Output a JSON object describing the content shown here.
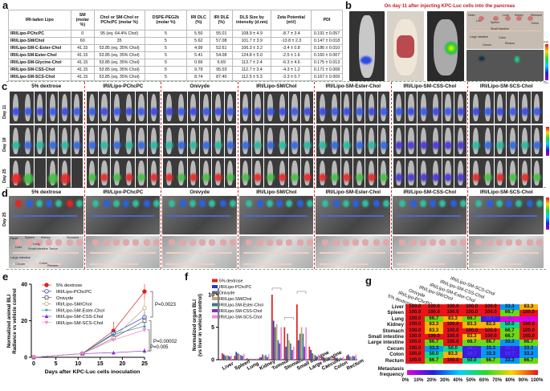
{
  "panel_labels": {
    "a": "a",
    "b": "b",
    "c": "c",
    "d": "d",
    "e": "e",
    "f": "f",
    "g": "g"
  },
  "table": {
    "headers": [
      "IRI-laden Lipo",
      "SM (molar %)",
      "Chol or SM-Chol or PChcPC (molar %)",
      "DSPE-PEG2k (molar %)",
      "IRI DLC (%)",
      "IRI DLE (%)",
      "DLS Size by intensity (d.nm)",
      "Zeta Potential (mV)",
      "PDI"
    ],
    "rows": [
      [
        "IRI/Lipo-PChcPC",
        "0",
        "95 (eq. 64.4% Chol)",
        "5",
        "5.50",
        "55.01",
        "108.9 ± 4.9",
        "-8.7 ± 3.4",
        "0.191 ± 0.057"
      ],
      [
        "IRI/Lipo-SM/Chol",
        "60",
        "35",
        "5",
        "5.62",
        "57.08",
        "101.7 ± 3.9",
        "-13.8 ± 2.3",
        "0.147 ± 0.018"
      ],
      [
        "IRI/Lipo-SM-C-Ester-Chol",
        "41.15",
        "53.85 (eq. 35% Chol)",
        "5",
        "4.99",
        "52.61",
        "106.3 ± 3.2",
        "-3.4 ± 0.8",
        "0.186 ± 0.010"
      ],
      [
        "IRI/Lipo-SM-Ester-Chol",
        "41.15",
        "53.85 (eq. 35% Chol)",
        "5",
        "5.41",
        "54.08",
        "124.8 ± 5.0",
        "-2.5 ± 1.6",
        "0.160 ± 0.007"
      ],
      [
        "IRI/Lipo-SM-Glycine-Chol",
        "41.15",
        "53.85 (eq. 35% Chol)",
        "5",
        "0.66",
        "6.69",
        "113.7 ± 2.4",
        "-6.3 ± 4.6",
        "0.175 ± 0.013"
      ],
      [
        "IRI/Lipo-SM-CSS-Chol",
        "41.15",
        "53.85 (eq. 35% Chol)",
        "5",
        "9.79",
        "95.03",
        "112.7 ± 3.4",
        "-4.3 ± 1.2",
        "0.171 ± 0.008"
      ],
      [
        "IRI/Lipo-SM-SCS-Chol",
        "41.15",
        "53.85 (eq. 35% Chol)",
        "5",
        "8.74",
        "87.40",
        "112.5 ± 5.3",
        "-3.3 ± 0.7",
        "0.167 ± 0.009"
      ]
    ]
  },
  "panel_b": {
    "title": "On day 11 after injecting KPC-Luc cells into the pancreas",
    "organ_labels": [
      "Heart",
      "Liver",
      "Spleen",
      "Lung",
      "Kidney",
      "Stomach",
      "Tumor",
      "Small intestine",
      "Large intestine",
      "Colon",
      "Rectum",
      "Cecum"
    ],
    "colorbar": {
      "high": "High",
      "low": "Low"
    }
  },
  "groups": [
    "5% dextrose",
    "IRI/Lipo-PChcPC",
    "Onivyde",
    "IRI/Lipo-SM/Chol",
    "IRI/Lipo-SM-Ester-Chol",
    "IRI/Lipo-SM-CSS-Chol",
    "IRI/Lipo-SM-SCS-Chol"
  ],
  "panel_c": {
    "days": [
      "Day 11",
      "Day 18",
      "Day 25"
    ],
    "colorbar": {
      "high": "High",
      "low": "Low"
    }
  },
  "panel_d": {
    "day": "Day 25",
    "organ_labels": [
      "Heart",
      "Spleen",
      "Kidney",
      "Stomach",
      "Liver",
      "Lung",
      "Small intestine",
      "Tumor",
      "Large intestine",
      "Colon",
      "Cecum",
      "Rectum"
    ]
  },
  "chart_data": [
    {
      "type": "line",
      "xlabel": "Days after KPC-Luc cells inoculation",
      "ylabel": [
        "Normalized animal BLI",
        "Radiance vs vehicle control"
      ],
      "x": [
        0,
        11,
        18,
        25
      ],
      "xticks": [
        0,
        5,
        10,
        15,
        20,
        25
      ],
      "yticks": [
        0,
        20,
        40
      ],
      "xlim": [
        0,
        25
      ],
      "ylim": [
        0,
        40
      ],
      "series": [
        {
          "name": "5% dextrose",
          "values": [
            0,
            2,
            14.5,
            36
          ],
          "err": [
            0,
            0.5,
            5,
            4
          ],
          "color": "#e0201b",
          "marker": "filled-circle"
        },
        {
          "name": "IRI/Lipo-PChcPC",
          "values": [
            0,
            2,
            13,
            22
          ],
          "err": [
            0,
            0.4,
            1.5,
            3
          ],
          "color": "#1f3fcf",
          "marker": "open-circle"
        },
        {
          "name": "Onivyde",
          "values": [
            0,
            2,
            10.5,
            20
          ],
          "err": [
            0,
            0.4,
            1.5,
            3
          ],
          "color": "#555555",
          "marker": "open-square"
        },
        {
          "name": "IRI/Lipo-SM/Chol",
          "values": [
            0,
            2,
            10.5,
            27
          ],
          "err": [
            0,
            0.4,
            1.5,
            6
          ],
          "color": "#c8a060",
          "marker": "open-circle"
        },
        {
          "name": "IRI/Lipo-SM-Ester-Chol",
          "values": [
            0,
            2,
            12.5,
            17
          ],
          "err": [
            0,
            0.4,
            1.5,
            2
          ],
          "color": "#2e8fa0",
          "marker": "star"
        },
        {
          "name": "IRI/Lipo-SM-CSS-Chol",
          "values": [
            0,
            2,
            2.5,
            3.5
          ],
          "err": [
            0,
            0.4,
            1,
            1.5
          ],
          "color": "#8a2bd0",
          "marker": "filled-triangle"
        },
        {
          "name": "IRI/Lipo-SM-SCS-Chol",
          "values": [
            0,
            2,
            9.5,
            15
          ],
          "err": [
            0,
            0.4,
            1,
            1.5
          ],
          "color": "#f08ccf",
          "marker": "inverted-triangle"
        }
      ],
      "annotations": [
        "P=0.0023",
        "P=0.00002",
        "P=0.005"
      ],
      "legend": "top-left"
    },
    {
      "type": "bar",
      "ylabel": [
        "Normalized organ BLI",
        "(vs liver in vehicle control)"
      ],
      "yticks": [
        0,
        5,
        10
      ],
      "ylim": [
        0,
        11
      ],
      "categories": [
        "Liver",
        "Spleen",
        "Lung",
        "Kidney",
        "Tumour",
        "Stomach",
        "Small intestine",
        "Large intestine",
        "Caecum",
        "Colon",
        "Rectum"
      ],
      "series": [
        {
          "name": "5% dextrose",
          "color": "#e0201b",
          "values": [
            1.0,
            0.6,
            0.2,
            0.3,
            10.0,
            5.0,
            8.5,
            2.0,
            0.5,
            0.4,
            0.6
          ]
        },
        {
          "name": "IRI/Lipo-PChcPC",
          "color": "#1f3fcf",
          "values": [
            0.8,
            1.2,
            0.1,
            0.4,
            6.0,
            2.0,
            3.0,
            1.5,
            0.4,
            0.3,
            0.8
          ]
        },
        {
          "name": "Onivyde",
          "color": "#666666",
          "values": [
            0.6,
            1.0,
            0.1,
            0.8,
            5.0,
            4.0,
            4.0,
            1.0,
            0.3,
            0.3,
            0.5
          ]
        },
        {
          "name": "IRI/Lipo-SM/Chol",
          "color": "#c8a57c",
          "values": [
            0.7,
            0.9,
            0.2,
            0.6,
            5.5,
            3.0,
            5.0,
            0.8,
            0.4,
            0.2,
            0.4
          ]
        },
        {
          "name": "IRI/Lipo-SM-Ester-Chol",
          "color": "#2e7f8f",
          "values": [
            0.6,
            0.7,
            0.1,
            0.7,
            3.0,
            2.5,
            4.0,
            0.7,
            0.3,
            0.3,
            0.6
          ]
        },
        {
          "name": "IRI/Lipo-SM-CSS-Chol",
          "color": "#8a2bd0",
          "values": [
            0.5,
            0.6,
            0.1,
            0.4,
            2.5,
            1.5,
            2.0,
            0.5,
            0.2,
            0.2,
            0.5
          ]
        },
        {
          "name": "IRI/Lipo-SM-SCS-Chol",
          "color": "#f08ccf",
          "values": [
            0.6,
            0.9,
            0.2,
            0.8,
            5.0,
            2.0,
            5.0,
            0.8,
            0.3,
            0.4,
            0.8
          ]
        }
      ],
      "legend": "top-left"
    },
    {
      "type": "heatmap",
      "columns": [
        "5% dextrose",
        "IRI/Lipo-PChcPC",
        "Onivyde",
        "IRI/Lipo-SM/Chol",
        "IRI/Lipo-SM-Ester-Chol",
        "IRI/Lipo-SM-CSS-Chol",
        "IRI/Lipo-SM-SCS-Chol"
      ],
      "rows": [
        "Liver",
        "Spleen",
        "Lung",
        "Kidney",
        "Stomach",
        "Small intestine",
        "Large intestine",
        "Cecum",
        "Colon",
        "Rectum"
      ],
      "values": [
        [
          100,
          100,
          100,
          100,
          100,
          33.3,
          83.3
        ],
        [
          100,
          100,
          100,
          100,
          100,
          66.7,
          100
        ],
        [
          100,
          66.7,
          83.3,
          66.7,
          16.7,
          0,
          0
        ],
        [
          100,
          83.3,
          100,
          83.3,
          83.3,
          50.0,
          100
        ],
        [
          100,
          83.3,
          100,
          100,
          100,
          66.7,
          100
        ],
        [
          100,
          100,
          100,
          83.3,
          100,
          66.7,
          100
        ],
        [
          100,
          66.7,
          100,
          66.7,
          66.7,
          33.3,
          66.7
        ],
        [
          100,
          33.3,
          50.0,
          16.7,
          33.3,
          16.7,
          33.3
        ],
        [
          100,
          50.0,
          83.3,
          16.7,
          33.3,
          16.7,
          33.3
        ],
        [
          100,
          66.7,
          100,
          50.0,
          66.7,
          33.3,
          66.7
        ]
      ],
      "colorbar_label": [
        "Metastasis",
        "frequency"
      ],
      "colorbar_ticks": [
        "0%",
        "10%",
        "20%",
        "30%",
        "40%",
        "50%",
        "60%",
        "70%",
        "80%",
        "90%",
        "100%"
      ],
      "colormap": [
        "#e000e0",
        "#2020e0",
        "#00d0ff",
        "#22dd22",
        "#ffd200",
        "#e8141a"
      ]
    }
  ]
}
